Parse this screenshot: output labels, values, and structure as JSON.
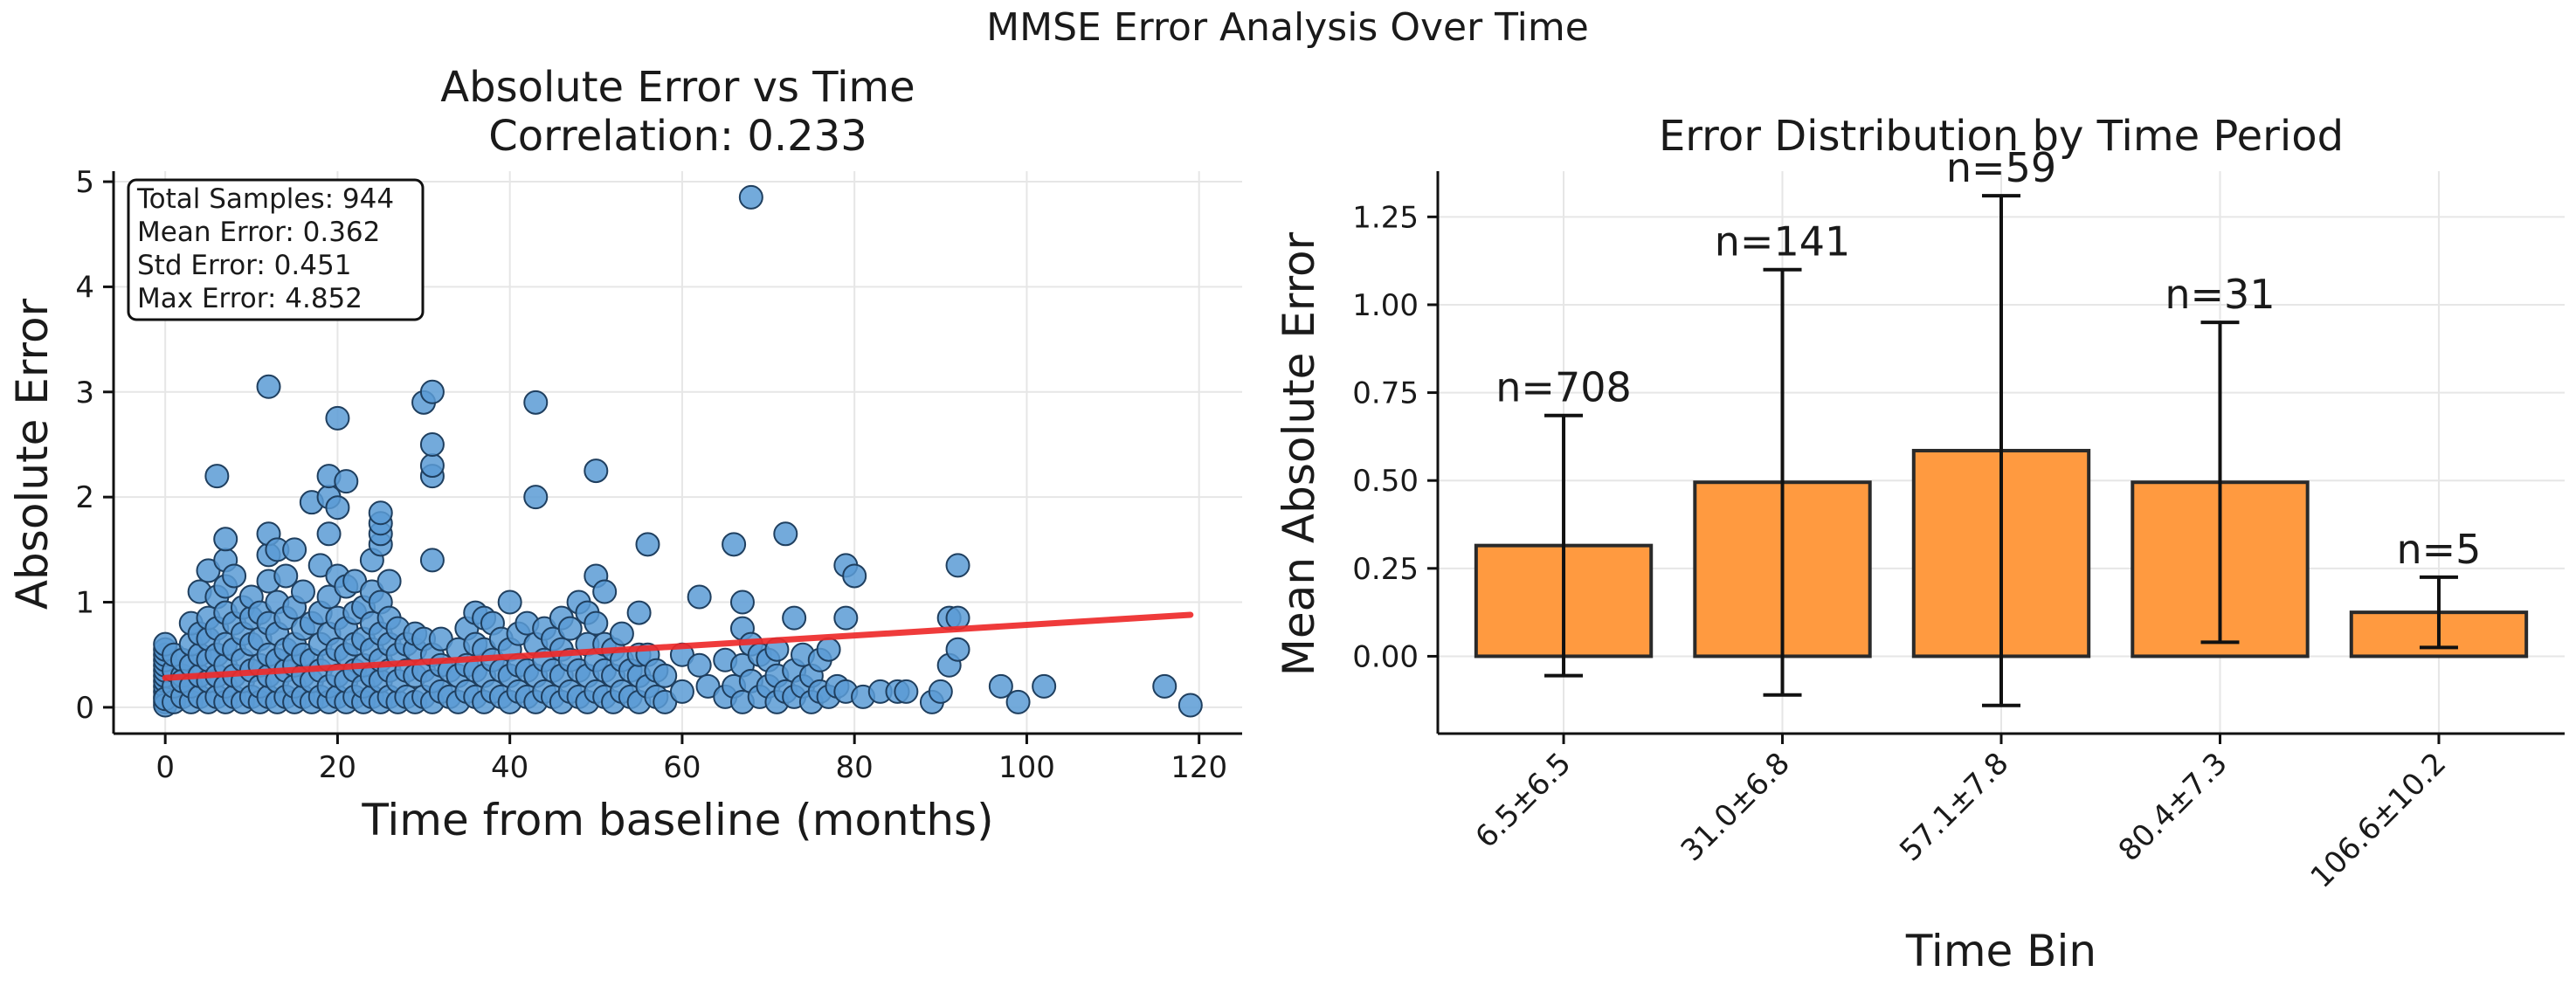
{
  "figure": {
    "suptitle": "MMSE Error Analysis Over Time"
  },
  "colors": {
    "scatter_fill": "#5b9bd5",
    "scatter_edge": "#1f3f5f",
    "trend": "#ee2a2a",
    "bar_fill": "#ff9a40",
    "bar_edge": "#2a2a2a"
  },
  "chart_data": [
    {
      "type": "scatter",
      "title": "Absolute Error vs Time",
      "subtitle": "Correlation: 0.233",
      "xlabel": "Time from baseline (months)",
      "ylabel": "Absolute Error",
      "xlim": [
        -6,
        125
      ],
      "ylim": [
        -0.25,
        5.1
      ],
      "xticks": [
        0,
        20,
        40,
        60,
        80,
        100,
        120
      ],
      "yticks": [
        0,
        1,
        2,
        3,
        4,
        5
      ],
      "grid": true,
      "stats_box": [
        "Total Samples: 944",
        "Mean Error: 0.362",
        "Std Error: 0.451",
        "Max Error: 4.852"
      ],
      "trend_line": {
        "x": [
          0,
          119
        ],
        "y": [
          0.28,
          0.88
        ]
      },
      "points": [
        [
          0,
          0.05
        ],
        [
          0,
          0.1
        ],
        [
          0,
          0.15
        ],
        [
          0,
          0.2
        ],
        [
          0,
          0.25
        ],
        [
          0,
          0.3
        ],
        [
          0,
          0.35
        ],
        [
          0,
          0.4
        ],
        [
          0,
          0.45
        ],
        [
          0,
          0.5
        ],
        [
          0,
          0.55
        ],
        [
          0,
          0.6
        ],
        [
          0,
          0.02
        ],
        [
          0,
          0.08
        ],
        [
          1,
          0.05
        ],
        [
          1,
          0.2
        ],
        [
          1,
          0.35
        ],
        [
          1,
          0.5
        ],
        [
          2,
          0.1
        ],
        [
          2,
          0.3
        ],
        [
          2,
          0.45
        ],
        [
          2,
          0.25
        ],
        [
          3,
          0.05
        ],
        [
          3,
          0.2
        ],
        [
          3,
          0.4
        ],
        [
          3,
          0.6
        ],
        [
          3,
          0.8
        ],
        [
          4,
          0.1
        ],
        [
          4,
          0.3
        ],
        [
          4,
          0.5
        ],
        [
          4,
          0.7
        ],
        [
          4,
          1.1
        ],
        [
          5,
          0.05
        ],
        [
          5,
          0.25
        ],
        [
          5,
          0.45
        ],
        [
          5,
          0.65
        ],
        [
          5,
          0.85
        ],
        [
          5,
          1.3
        ],
        [
          6,
          0.1
        ],
        [
          6,
          0.3
        ],
        [
          6,
          0.5
        ],
        [
          6,
          0.75
        ],
        [
          6,
          1.05
        ],
        [
          6,
          2.2
        ],
        [
          7,
          0.05
        ],
        [
          7,
          0.2
        ],
        [
          7,
          0.4
        ],
        [
          7,
          0.6
        ],
        [
          7,
          0.9
        ],
        [
          7,
          1.15
        ],
        [
          7,
          1.4
        ],
        [
          7,
          1.6
        ],
        [
          8,
          0.1
        ],
        [
          8,
          0.3
        ],
        [
          8,
          0.55
        ],
        [
          8,
          0.8
        ],
        [
          8,
          1.25
        ],
        [
          9,
          0.05
        ],
        [
          9,
          0.25
        ],
        [
          9,
          0.45
        ],
        [
          9,
          0.7
        ],
        [
          9,
          0.95
        ],
        [
          10,
          0.1
        ],
        [
          10,
          0.35
        ],
        [
          10,
          0.6
        ],
        [
          10,
          0.85
        ],
        [
          10,
          1.05
        ],
        [
          11,
          0.05
        ],
        [
          11,
          0.2
        ],
        [
          11,
          0.4
        ],
        [
          11,
          0.65
        ],
        [
          11,
          0.9
        ],
        [
          12,
          0.1
        ],
        [
          12,
          0.3
        ],
        [
          12,
          0.5
        ],
        [
          12,
          0.8
        ],
        [
          12,
          1.2
        ],
        [
          12,
          1.45
        ],
        [
          12,
          1.65
        ],
        [
          12,
          3.05
        ],
        [
          13,
          0.05
        ],
        [
          13,
          0.25
        ],
        [
          13,
          0.45
        ],
        [
          13,
          0.7
        ],
        [
          13,
          1.0
        ],
        [
          13,
          1.5
        ],
        [
          14,
          0.1
        ],
        [
          14,
          0.35
        ],
        [
          14,
          0.55
        ],
        [
          14,
          0.85
        ],
        [
          14,
          1.25
        ],
        [
          15,
          0.05
        ],
        [
          15,
          0.2
        ],
        [
          15,
          0.4
        ],
        [
          15,
          0.6
        ],
        [
          15,
          0.95
        ],
        [
          15,
          1.5
        ],
        [
          16,
          0.1
        ],
        [
          16,
          0.3
        ],
        [
          16,
          0.5
        ],
        [
          16,
          0.75
        ],
        [
          16,
          1.1
        ],
        [
          17,
          0.05
        ],
        [
          17,
          0.25
        ],
        [
          17,
          0.45
        ],
        [
          17,
          0.8
        ],
        [
          17,
          1.95
        ],
        [
          18,
          0.1
        ],
        [
          18,
          0.35
        ],
        [
          18,
          0.6
        ],
        [
          18,
          0.9
        ],
        [
          18,
          1.35
        ],
        [
          19,
          0.05
        ],
        [
          19,
          0.2
        ],
        [
          19,
          0.45
        ],
        [
          19,
          0.7
        ],
        [
          19,
          1.05
        ],
        [
          19,
          1.65
        ],
        [
          19,
          2.0
        ],
        [
          19,
          2.2
        ],
        [
          20,
          0.1
        ],
        [
          20,
          0.3
        ],
        [
          20,
          0.55
        ],
        [
          20,
          0.85
        ],
        [
          20,
          1.25
        ],
        [
          20,
          1.9
        ],
        [
          20,
          2.75
        ],
        [
          21,
          0.05
        ],
        [
          21,
          0.25
        ],
        [
          21,
          0.5
        ],
        [
          21,
          0.75
        ],
        [
          21,
          1.15
        ],
        [
          21,
          2.15
        ],
        [
          22,
          0.1
        ],
        [
          22,
          0.35
        ],
        [
          22,
          0.6
        ],
        [
          22,
          0.9
        ],
        [
          22,
          1.2
        ],
        [
          23,
          0.05
        ],
        [
          23,
          0.2
        ],
        [
          23,
          0.4
        ],
        [
          23,
          0.65
        ],
        [
          23,
          0.95
        ],
        [
          24,
          0.1
        ],
        [
          24,
          0.3
        ],
        [
          24,
          0.55
        ],
        [
          24,
          0.8
        ],
        [
          24,
          1.1
        ],
        [
          24,
          1.4
        ],
        [
          25,
          0.05
        ],
        [
          25,
          0.25
        ],
        [
          25,
          0.45
        ],
        [
          25,
          0.7
        ],
        [
          25,
          1.0
        ],
        [
          25,
          1.55
        ],
        [
          25,
          1.65
        ],
        [
          25,
          1.75
        ],
        [
          25,
          1.85
        ],
        [
          26,
          0.1
        ],
        [
          26,
          0.35
        ],
        [
          26,
          0.6
        ],
        [
          26,
          0.85
        ],
        [
          26,
          1.2
        ],
        [
          27,
          0.05
        ],
        [
          27,
          0.25
        ],
        [
          27,
          0.5
        ],
        [
          27,
          0.75
        ],
        [
          28,
          0.1
        ],
        [
          28,
          0.35
        ],
        [
          28,
          0.6
        ],
        [
          29,
          0.05
        ],
        [
          29,
          0.3
        ],
        [
          29,
          0.55
        ],
        [
          29,
          0.7
        ],
        [
          30,
          0.1
        ],
        [
          30,
          0.35
        ],
        [
          30,
          0.65
        ],
        [
          30,
          2.9
        ],
        [
          31,
          0.05
        ],
        [
          31,
          0.25
        ],
        [
          31,
          0.5
        ],
        [
          31,
          1.4
        ],
        [
          31,
          2.2
        ],
        [
          31,
          2.3
        ],
        [
          31,
          2.5
        ],
        [
          31,
          3.0
        ],
        [
          32,
          0.15
        ],
        [
          32,
          0.4
        ],
        [
          32,
          0.65
        ],
        [
          33,
          0.1
        ],
        [
          33,
          0.35
        ],
        [
          34,
          0.05
        ],
        [
          34,
          0.3
        ],
        [
          34,
          0.55
        ],
        [
          35,
          0.15
        ],
        [
          35,
          0.4
        ],
        [
          35,
          0.75
        ],
        [
          36,
          0.1
        ],
        [
          36,
          0.35
        ],
        [
          36,
          0.6
        ],
        [
          36,
          0.9
        ],
        [
          37,
          0.05
        ],
        [
          37,
          0.3
        ],
        [
          37,
          0.55
        ],
        [
          37,
          0.85
        ],
        [
          38,
          0.15
        ],
        [
          38,
          0.45
        ],
        [
          38,
          0.8
        ],
        [
          39,
          0.1
        ],
        [
          39,
          0.35
        ],
        [
          39,
          0.65
        ],
        [
          40,
          0.05
        ],
        [
          40,
          0.3
        ],
        [
          40,
          0.55
        ],
        [
          40,
          1.0
        ],
        [
          41,
          0.15
        ],
        [
          41,
          0.4
        ],
        [
          41,
          0.7
        ],
        [
          42,
          0.1
        ],
        [
          42,
          0.35
        ],
        [
          42,
          0.8
        ],
        [
          43,
          0.05
        ],
        [
          43,
          0.3
        ],
        [
          43,
          0.6
        ],
        [
          43,
          2.0
        ],
        [
          43,
          2.9
        ],
        [
          44,
          0.15
        ],
        [
          44,
          0.45
        ],
        [
          44,
          0.75
        ],
        [
          45,
          0.1
        ],
        [
          45,
          0.35
        ],
        [
          45,
          0.65
        ],
        [
          46,
          0.05
        ],
        [
          46,
          0.3
        ],
        [
          46,
          0.55
        ],
        [
          46,
          0.85
        ],
        [
          47,
          0.15
        ],
        [
          47,
          0.45
        ],
        [
          47,
          0.75
        ],
        [
          48,
          0.1
        ],
        [
          48,
          0.35
        ],
        [
          48,
          1.0
        ],
        [
          49,
          0.05
        ],
        [
          49,
          0.3
        ],
        [
          49,
          0.6
        ],
        [
          49,
          0.9
        ],
        [
          50,
          0.15
        ],
        [
          50,
          0.45
        ],
        [
          50,
          0.8
        ],
        [
          50,
          1.25
        ],
        [
          50,
          2.25
        ],
        [
          51,
          0.1
        ],
        [
          51,
          0.35
        ],
        [
          51,
          0.6
        ],
        [
          51,
          1.1
        ],
        [
          52,
          0.05
        ],
        [
          52,
          0.3
        ],
        [
          52,
          0.55
        ],
        [
          53,
          0.15
        ],
        [
          53,
          0.45
        ],
        [
          53,
          0.7
        ],
        [
          54,
          0.1
        ],
        [
          54,
          0.35
        ],
        [
          55,
          0.05
        ],
        [
          55,
          0.3
        ],
        [
          55,
          0.5
        ],
        [
          55,
          0.9
        ],
        [
          56,
          0.2
        ],
        [
          56,
          0.5
        ],
        [
          56,
          1.55
        ],
        [
          57,
          0.1
        ],
        [
          57,
          0.35
        ],
        [
          58,
          0.05
        ],
        [
          58,
          0.3
        ],
        [
          60,
          0.15
        ],
        [
          60,
          0.5
        ],
        [
          62,
          0.4
        ],
        [
          62,
          1.05
        ],
        [
          63,
          0.2
        ],
        [
          65,
          0.1
        ],
        [
          65,
          0.45
        ],
        [
          66,
          0.2
        ],
        [
          66,
          1.55
        ],
        [
          67,
          0.05
        ],
        [
          67,
          0.4
        ],
        [
          67,
          0.75
        ],
        [
          67,
          1.0
        ],
        [
          68,
          0.25
        ],
        [
          68,
          0.6
        ],
        [
          68,
          4.852
        ],
        [
          69,
          0.1
        ],
        [
          69,
          0.5
        ],
        [
          70,
          0.2
        ],
        [
          70,
          0.45
        ],
        [
          71,
          0.05
        ],
        [
          71,
          0.3
        ],
        [
          71,
          0.55
        ],
        [
          72,
          0.15
        ],
        [
          72,
          1.65
        ],
        [
          73,
          0.1
        ],
        [
          73,
          0.35
        ],
        [
          73,
          0.85
        ],
        [
          74,
          0.2
        ],
        [
          74,
          0.5
        ],
        [
          75,
          0.05
        ],
        [
          75,
          0.3
        ],
        [
          76,
          0.15
        ],
        [
          76,
          0.45
        ],
        [
          77,
          0.1
        ],
        [
          77,
          0.55
        ],
        [
          78,
          0.2
        ],
        [
          79,
          0.15
        ],
        [
          79,
          0.85
        ],
        [
          79,
          1.35
        ],
        [
          80,
          1.25
        ],
        [
          81,
          0.1
        ],
        [
          83,
          0.15
        ],
        [
          85,
          0.15
        ],
        [
          86,
          0.15
        ],
        [
          89,
          0.05
        ],
        [
          90,
          0.15
        ],
        [
          91,
          0.4
        ],
        [
          91,
          0.85
        ],
        [
          92,
          0.55
        ],
        [
          92,
          0.85
        ],
        [
          92,
          1.35
        ],
        [
          97,
          0.2
        ],
        [
          99,
          0.05
        ],
        [
          102,
          0.2
        ],
        [
          116,
          0.2
        ],
        [
          119,
          0.02
        ]
      ]
    },
    {
      "type": "bar",
      "title": "Error Distribution by Time Period",
      "xlabel": "Time Bin",
      "ylabel": "Mean Absolute Error",
      "categories": [
        "6.5±6.5",
        "31.0±6.8",
        "57.1±7.8",
        "80.4±7.3",
        "106.6±10.2"
      ],
      "values": [
        0.315,
        0.495,
        0.585,
        0.495,
        0.125
      ],
      "errors": [
        0.37,
        0.605,
        0.725,
        0.455,
        0.1
      ],
      "counts": [
        "n=708",
        "n=141",
        "n=59",
        "n=31",
        "n=5"
      ],
      "ylim": [
        -0.22,
        1.38
      ],
      "yticks": [
        0.0,
        0.25,
        0.5,
        0.75,
        1.0,
        1.25
      ],
      "ytick_labels": [
        "0.00",
        "0.25",
        "0.50",
        "0.75",
        "1.00",
        "1.25"
      ],
      "grid": true
    }
  ]
}
